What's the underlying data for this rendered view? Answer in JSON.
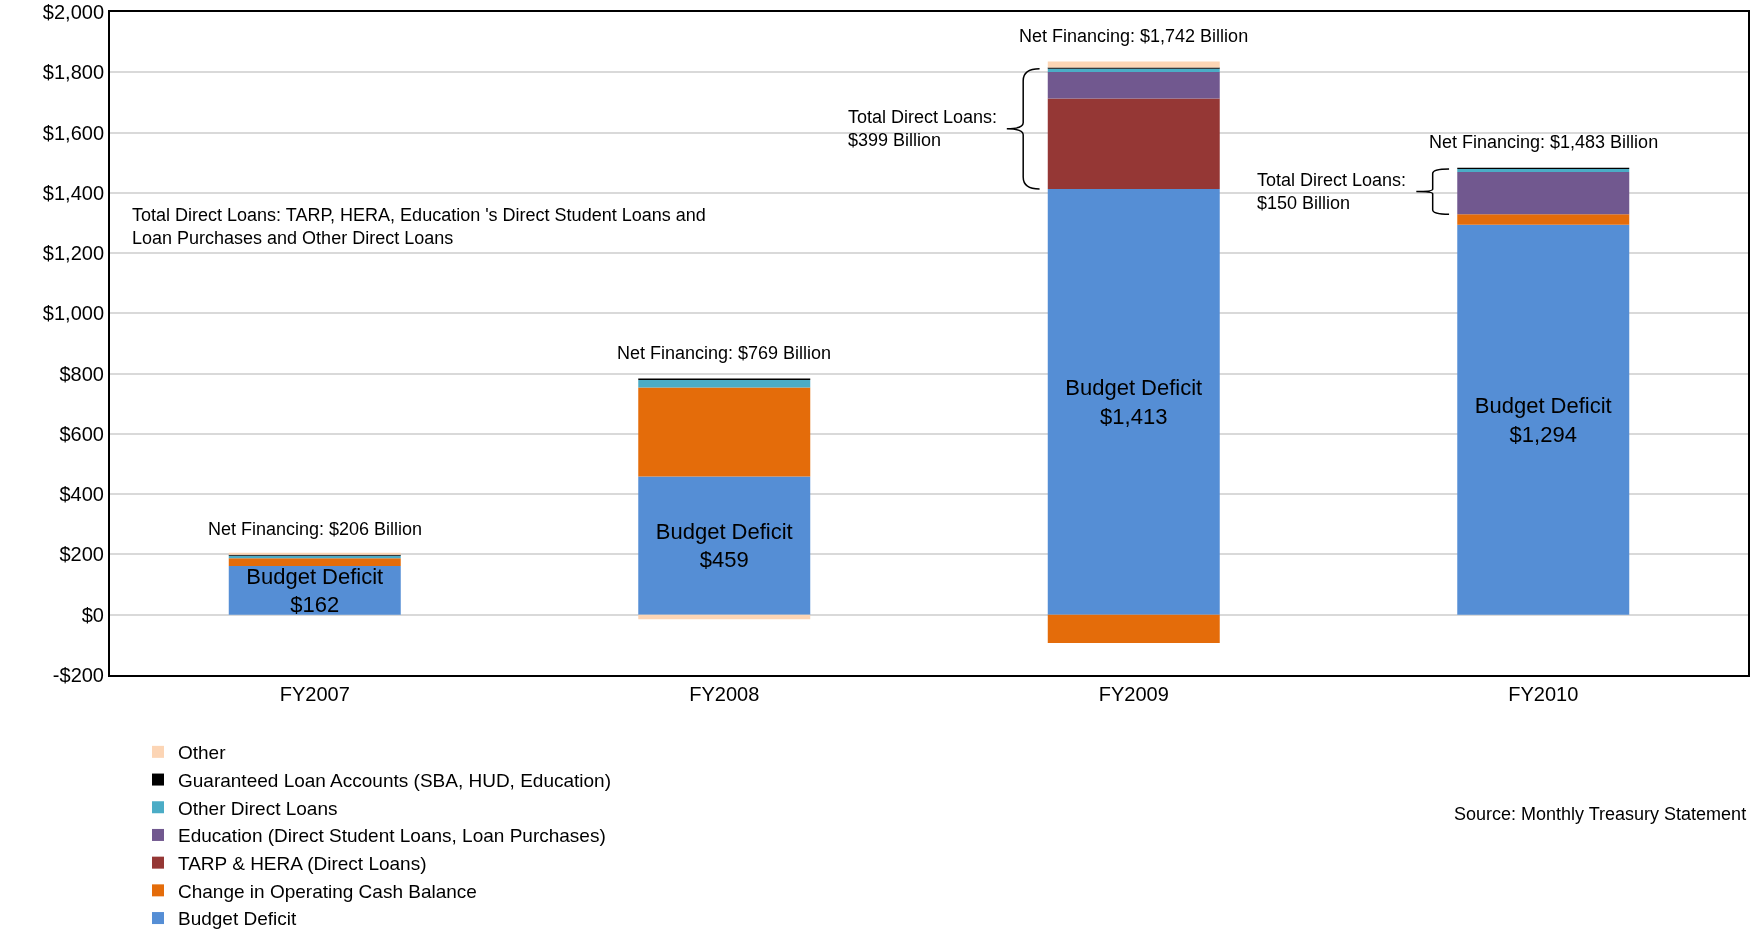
{
  "chart_data": {
    "type": "bar",
    "stacked": true,
    "categories": [
      "FY2007",
      "FY2008",
      "FY2009",
      "FY2010"
    ],
    "series": [
      {
        "name": "Budget Deficit",
        "color": "#558ed5",
        "values": [
          162,
          459,
          1413,
          1294
        ],
        "value_labels": [
          "Budget Deficit\n$162",
          "Budget Deficit\n$459",
          "Budget Deficit\n$1,413",
          "Budget Deficit\n$1,294"
        ]
      },
      {
        "name": "Change in Operating Cash Balance",
        "color": "#e46c0a",
        "values": [
          25,
          295,
          -94,
          35
        ]
      },
      {
        "name": "TARP & HERA (Direct Loans)",
        "color": "#953735",
        "values": [
          0,
          0,
          300,
          0
        ]
      },
      {
        "name": "Education (Direct Student Loans, Loan Purchases)",
        "color": "#71588f",
        "values": [
          0,
          0,
          88,
          140
        ]
      },
      {
        "name": "Other Direct Loans",
        "color": "#4bacc6",
        "values": [
          9,
          25,
          11,
          10
        ]
      },
      {
        "name": "Guaranteed Loan Accounts (SBA, HUD, Education)",
        "color": "#000000",
        "values": [
          3,
          5,
          4,
          4
        ]
      },
      {
        "name": "Other",
        "color": "#fcd5b5",
        "values": [
          7,
          -15,
          20,
          0
        ]
      }
    ],
    "ylim": [
      -200,
      2000
    ],
    "yticks": [
      {
        "value": -200,
        "label": "-$200"
      },
      {
        "value": 0,
        "label": "$0"
      },
      {
        "value": 200,
        "label": "$200"
      },
      {
        "value": 400,
        "label": "$400"
      },
      {
        "value": 600,
        "label": "$600"
      },
      {
        "value": 800,
        "label": "$800"
      },
      {
        "value": 1000,
        "label": "$1,000"
      },
      {
        "value": 1200,
        "label": "$1,200"
      },
      {
        "value": 1400,
        "label": "$1,400"
      },
      {
        "value": 1600,
        "label": "$1,600"
      },
      {
        "value": 1800,
        "label": "$1,800"
      },
      {
        "value": 2000,
        "label": "$2,000"
      }
    ],
    "grid": "y",
    "legend": "bottom",
    "annotations": [
      {
        "text": "Net Financing: $206 Billion",
        "x": "FY2007",
        "y": 206
      },
      {
        "text": "Net Financing: $769 Billion",
        "x": "FY2008",
        "y": 790
      },
      {
        "text": "Net Financing: $1,742 Billion",
        "x": "FY2009",
        "y": 1840
      },
      {
        "text": "Net Financing: $1,483 Billion",
        "x": "FY2010",
        "y": 1490
      },
      "Total Direct Loans:\n$399 Billion",
      "Total Direct Loans:\n$150 Billion",
      "Total Direct Loans: TARP, HERA, Education 's Direct Student Loans and\nLoan Purchases and Other Direct Loans",
      "Source: Monthly Treasury Statement"
    ]
  }
}
